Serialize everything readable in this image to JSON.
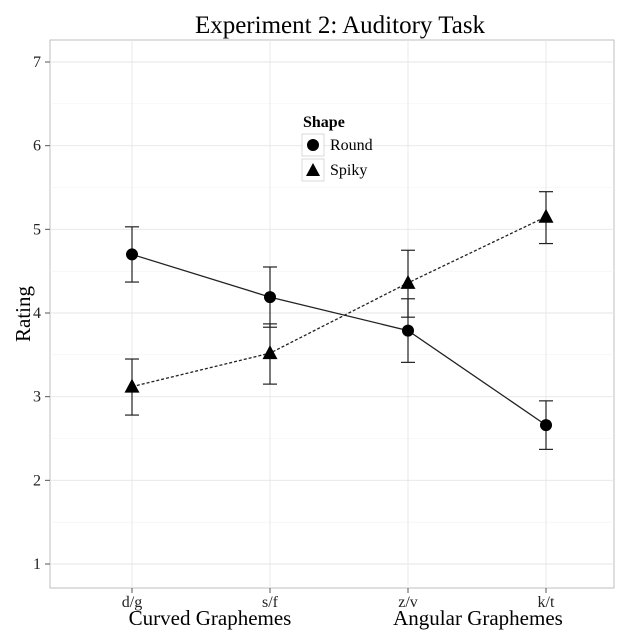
{
  "chart_data": {
    "type": "line",
    "title": "Experiment 2: Auditory Task",
    "ylabel": "Rating",
    "categories": [
      "d/g",
      "s/f",
      "z/v",
      "k/t"
    ],
    "group_labels": [
      "Curved Graphemes",
      "Angular Graphemes"
    ],
    "ylim": [
      0.75,
      7.3
    ],
    "yticks": [
      1,
      2,
      3,
      4,
      5,
      6,
      7
    ],
    "grid": true,
    "legend": {
      "title": "Shape",
      "position": "top-center"
    },
    "series": [
      {
        "name": "Round",
        "marker": "circle",
        "line": "solid",
        "values": [
          4.7,
          4.19,
          3.79,
          2.66
        ],
        "error_low": [
          4.37,
          3.83,
          3.41,
          2.37
        ],
        "error_high": [
          5.03,
          4.55,
          4.17,
          2.95
        ]
      },
      {
        "name": "Spiky",
        "marker": "triangle",
        "line": "dotted",
        "values": [
          3.12,
          3.52,
          4.36,
          5.15
        ],
        "error_low": [
          2.78,
          3.15,
          3.95,
          4.83
        ],
        "error_high": [
          3.45,
          3.87,
          4.75,
          5.45
        ]
      }
    ]
  }
}
